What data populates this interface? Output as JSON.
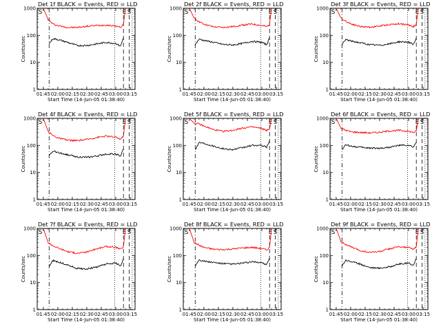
{
  "chart_data": {
    "type": "line",
    "y_scale": "log",
    "ylim": [
      1,
      1000
    ],
    "y_ticks": [
      {
        "value": 1,
        "label": "1"
      },
      {
        "value": 10,
        "label": "10"
      },
      {
        "value": 100,
        "label": "100"
      },
      {
        "value": 1000,
        "label": "1000"
      }
    ],
    "ylabel": "Counts/sec",
    "xlabel": "Start Time (14-Jun-05 01:38:40)",
    "xlim": [
      "01:38:40",
      "03:20:00"
    ],
    "x_ticks": [
      "01:45",
      "02:00",
      "02:15",
      "02:30",
      "02:45",
      "03:00",
      "03:15"
    ],
    "grid": false,
    "marker_lines": [
      {
        "time": "01:51",
        "style": "dash-dot"
      },
      {
        "time": "02:59",
        "style": "dotted"
      },
      {
        "time": "03:08",
        "style": "dashed"
      },
      {
        "time": "03:14",
        "style": "dashed"
      },
      {
        "time": "03:17",
        "style": "dotted"
      }
    ],
    "letters": [
      {
        "text": "S",
        "time": "01:40"
      },
      {
        "text": "E",
        "time": "03:07"
      },
      {
        "text": "S",
        "time": "03:12"
      }
    ],
    "colors": {
      "events": "#000000",
      "lld": "#ff0000"
    },
    "panels": [
      {
        "title": "Det 1f BLACK = Events, RED = LLD",
        "series": [
          {
            "color": "#ff0000",
            "x": [
              "01:45",
              "01:50",
              "01:55",
              "02:00",
              "02:10",
              "02:20",
              "02:30",
              "02:40",
              "02:50",
              "03:00",
              "03:05",
              "03:08",
              "03:10"
            ],
            "values": [
              1000,
              380,
              260,
              230,
              195,
              195,
              215,
              230,
              240,
              220,
              200,
              250,
              1000
            ]
          },
          {
            "color": "#000000",
            "x": [
              "01:51",
              "01:55",
              "02:00",
              "02:10",
              "02:20",
              "02:30",
              "02:40",
              "02:50",
              "03:00",
              "03:05",
              "03:08"
            ],
            "values": [
              50,
              75,
              70,
              55,
              42,
              42,
              48,
              55,
              50,
              40,
              80
            ]
          }
        ]
      },
      {
        "title": "Det 2f BLACK = Events, RED = LLD",
        "series": [
          {
            "color": "#ff0000",
            "x": [
              "01:45",
              "01:50",
              "01:55",
              "02:00",
              "02:10",
              "02:20",
              "02:30",
              "02:40",
              "02:50",
              "03:00",
              "03:05",
              "03:08",
              "03:10"
            ],
            "values": [
              1000,
              420,
              320,
              260,
              205,
              195,
              210,
              240,
              260,
              230,
              210,
              250,
              1000
            ]
          },
          {
            "color": "#000000",
            "x": [
              "01:51",
              "01:55",
              "02:00",
              "02:10",
              "02:20",
              "02:30",
              "02:40",
              "02:50",
              "03:00",
              "03:05",
              "03:08"
            ],
            "values": [
              45,
              72,
              65,
              55,
              46,
              44,
              50,
              60,
              55,
              45,
              80
            ]
          }
        ]
      },
      {
        "title": "Det 3f BLACK = Events, RED = LLD",
        "series": [
          {
            "color": "#ff0000",
            "x": [
              "01:45",
              "01:50",
              "01:55",
              "02:00",
              "02:10",
              "02:20",
              "02:30",
              "02:40",
              "02:50",
              "03:00",
              "03:05",
              "03:08",
              "03:10"
            ],
            "values": [
              1000,
              430,
              330,
              270,
              210,
              200,
              220,
              250,
              270,
              240,
              210,
              250,
              1000
            ]
          },
          {
            "color": "#000000",
            "x": [
              "01:51",
              "01:55",
              "02:00",
              "02:10",
              "02:20",
              "02:30",
              "02:40",
              "02:50",
              "03:00",
              "03:05",
              "03:08"
            ],
            "values": [
              45,
              70,
              62,
              53,
              45,
              43,
              48,
              58,
              56,
              45,
              80
            ]
          }
        ]
      },
      {
        "title": "Det 4f BLACK = Events, RED = LLD",
        "series": [
          {
            "color": "#ff0000",
            "x": [
              "01:45",
              "01:50",
              "01:55",
              "02:00",
              "02:10",
              "02:20",
              "02:30",
              "02:40",
              "02:50",
              "03:00",
              "03:05",
              "03:08",
              "03:10"
            ],
            "values": [
              1000,
              330,
              230,
              190,
              155,
              150,
              165,
              195,
              220,
              200,
              170,
              220,
              1000
            ]
          },
          {
            "color": "#000000",
            "x": [
              "01:51",
              "01:55",
              "02:00",
              "02:10",
              "02:20",
              "02:30",
              "02:40",
              "02:50",
              "03:00",
              "03:05",
              "03:08"
            ],
            "values": [
              40,
              62,
              55,
              45,
              38,
              36,
              40,
              48,
              48,
              40,
              75
            ]
          }
        ]
      },
      {
        "title": "Det 5f BLACK = Events, RED = LLD",
        "series": [
          {
            "color": "#ff0000",
            "x": [
              "01:45",
              "01:50",
              "01:55",
              "02:00",
              "02:10",
              "02:20",
              "02:30",
              "02:40",
              "02:50",
              "03:00",
              "03:05",
              "03:08",
              "03:10"
            ],
            "values": [
              1000,
              650,
              620,
              520,
              380,
              330,
              360,
              440,
              480,
              420,
              360,
              400,
              1000
            ]
          },
          {
            "color": "#000000",
            "x": [
              "01:51",
              "01:55",
              "02:00",
              "02:10",
              "02:20",
              "02:30",
              "02:40",
              "02:50",
              "03:00",
              "03:05",
              "03:08"
            ],
            "values": [
              70,
              130,
              120,
              95,
              75,
              70,
              82,
              100,
              100,
              85,
              150
            ]
          }
        ]
      },
      {
        "title": "Det 6f BLACK = Events, RED = LLD",
        "series": [
          {
            "color": "#ff0000",
            "x": [
              "01:45",
              "01:50",
              "01:55",
              "02:00",
              "02:10",
              "02:20",
              "02:30",
              "02:40",
              "02:50",
              "03:00",
              "03:05",
              "03:08",
              "03:10"
            ],
            "values": [
              1000,
              430,
              360,
              320,
              300,
              290,
              305,
              340,
              360,
              330,
              300,
              340,
              1000
            ]
          },
          {
            "color": "#000000",
            "x": [
              "01:51",
              "01:55",
              "02:00",
              "02:10",
              "02:20",
              "02:30",
              "02:40",
              "02:50",
              "03:00",
              "03:05",
              "03:08"
            ],
            "values": [
              70,
              105,
              95,
              85,
              80,
              78,
              85,
              100,
              100,
              85,
              130
            ]
          }
        ]
      },
      {
        "title": "Det 7f BLACK = Events, RED = LLD",
        "series": [
          {
            "color": "#ff0000",
            "x": [
              "01:45",
              "01:50",
              "01:55",
              "02:00",
              "02:10",
              "02:20",
              "02:30",
              "02:40",
              "02:50",
              "03:00",
              "03:05",
              "03:08",
              "03:10"
            ],
            "values": [
              1000,
              300,
              230,
              190,
              140,
              120,
              135,
              175,
              215,
              200,
              170,
              210,
              1000
            ]
          },
          {
            "color": "#000000",
            "x": [
              "01:51",
              "01:55",
              "02:00",
              "02:10",
              "02:20",
              "02:30",
              "02:40",
              "02:50",
              "03:00",
              "03:05",
              "03:08"
            ],
            "values": [
              40,
              65,
              58,
              45,
              33,
              32,
              37,
              48,
              52,
              42,
              75
            ]
          }
        ]
      },
      {
        "title": "Det 8f BLACK = Events, RED = LLD",
        "series": [
          {
            "color": "#ff0000",
            "x": [
              "01:45",
              "01:50",
              "01:55",
              "02:00",
              "02:10",
              "02:20",
              "02:30",
              "02:40",
              "02:50",
              "03:00",
              "03:05",
              "03:08",
              "03:10"
            ],
            "values": [
              1000,
              300,
              240,
              200,
              170,
              165,
              175,
              190,
              200,
              180,
              160,
              200,
              1000
            ]
          },
          {
            "color": "#000000",
            "x": [
              "01:51",
              "01:55",
              "02:00",
              "02:10",
              "02:20",
              "02:30",
              "02:40",
              "02:50",
              "03:00",
              "03:05",
              "03:08"
            ],
            "values": [
              42,
              70,
              62,
              55,
              50,
              48,
              52,
              58,
              55,
              45,
              80
            ]
          }
        ]
      },
      {
        "title": "Det 9f BLACK = Events, RED = LLD",
        "series": [
          {
            "color": "#ff0000",
            "x": [
              "01:45",
              "01:50",
              "01:55",
              "02:00",
              "02:10",
              "02:20",
              "02:30",
              "02:40",
              "02:50",
              "03:00",
              "03:05",
              "03:08",
              "03:10"
            ],
            "values": [
              1000,
              330,
              250,
              210,
              150,
              130,
              140,
              175,
              210,
              195,
              170,
              210,
              1000
            ]
          },
          {
            "color": "#000000",
            "x": [
              "01:51",
              "01:55",
              "02:00",
              "02:10",
              "02:20",
              "02:30",
              "02:40",
              "02:50",
              "03:00",
              "03:05",
              "03:08"
            ],
            "values": [
              42,
              68,
              60,
              48,
              36,
              34,
              38,
              48,
              52,
              44,
              78
            ]
          }
        ]
      }
    ]
  }
}
